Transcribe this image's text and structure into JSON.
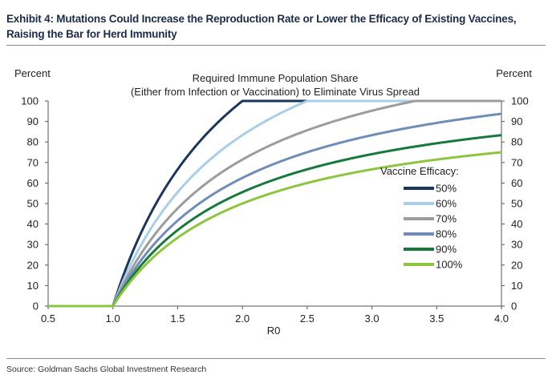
{
  "exhibit": {
    "title": "Exhibit 4: Mutations Could Increase the Reproduction Rate or Lower the Efficacy of Existing Vaccines, Raising the Bar for Herd Immunity",
    "source": "Source: Goldman Sachs Global Investment Research"
  },
  "chart_data": {
    "type": "line",
    "title": "Required Immune Population Share",
    "subtitle": "(Either from Infection or Vaccination) to Eliminate Virus Spread",
    "xlabel": "R0",
    "ylabel_left": "Percent",
    "ylabel_right": "Percent",
    "xlim": [
      0.5,
      4.0
    ],
    "ylim": [
      0,
      100
    ],
    "xticks": [
      "0.5",
      "1.0",
      "1.5",
      "2.0",
      "2.5",
      "3.0",
      "3.5",
      "4.0"
    ],
    "yticks": [
      "0",
      "10",
      "20",
      "30",
      "40",
      "50",
      "60",
      "70",
      "80",
      "90",
      "100"
    ],
    "grid": false,
    "legend_title": "Vaccine Efficacy:",
    "legend_position": "right",
    "series": [
      {
        "name": "50%",
        "efficacy": 0.5,
        "color": "#1b365d"
      },
      {
        "name": "60%",
        "efficacy": 0.6,
        "color": "#a9cfe8"
      },
      {
        "name": "70%",
        "efficacy": 0.7,
        "color": "#9c9c9c"
      },
      {
        "name": "80%",
        "efficacy": 0.8,
        "color": "#6f8db8"
      },
      {
        "name": "90%",
        "efficacy": 0.9,
        "color": "#157a3c"
      },
      {
        "name": "100%",
        "efficacy": 1.0,
        "color": "#8cc63f"
      }
    ]
  }
}
